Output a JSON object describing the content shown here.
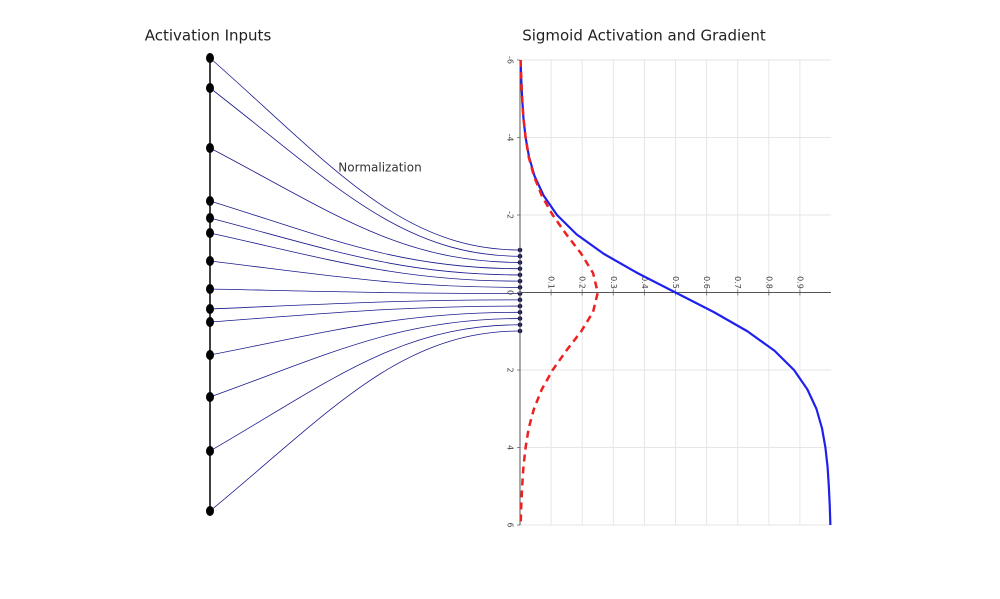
{
  "titles": {
    "inputs": "Activation Inputs",
    "sigmoid": "Sigmoid Activation and Gradient"
  },
  "annotation": "Normalization",
  "chart_data": {
    "type": "line",
    "x": [
      -6,
      -5.5,
      -5,
      -4.5,
      -4,
      -3.5,
      -3,
      -2.5,
      -2,
      -1.5,
      -1,
      -0.5,
      0,
      0.5,
      1,
      1.5,
      2,
      2.5,
      3,
      3.5,
      4,
      4.5,
      5,
      5.5,
      6
    ],
    "series": [
      {
        "color": "#2020ee",
        "dash": false,
        "values": [
          0.002,
          0.004,
          0.007,
          0.011,
          0.018,
          0.029,
          0.047,
          0.076,
          0.119,
          0.182,
          0.269,
          0.378,
          0.5,
          0.622,
          0.731,
          0.818,
          0.881,
          0.924,
          0.953,
          0.971,
          0.982,
          0.989,
          0.993,
          0.996,
          0.998
        ]
      },
      {
        "color": "#ee2020",
        "dash": true,
        "values": [
          0.002,
          0.004,
          0.007,
          0.011,
          0.018,
          0.028,
          0.045,
          0.07,
          0.105,
          0.149,
          0.197,
          0.235,
          0.25,
          0.235,
          0.197,
          0.149,
          0.105,
          0.07,
          0.045,
          0.028,
          0.018,
          0.011,
          0.007,
          0.004,
          0.002
        ]
      }
    ],
    "xlim": [
      -6,
      6
    ],
    "xticks": [
      -6,
      -4,
      -2,
      0,
      2,
      4,
      6
    ],
    "ylim": [
      0,
      1
    ],
    "yticks": [
      0.1,
      0.2,
      0.3,
      0.4,
      0.5,
      0.6,
      0.7,
      0.8,
      0.9
    ],
    "grid": true
  }
}
